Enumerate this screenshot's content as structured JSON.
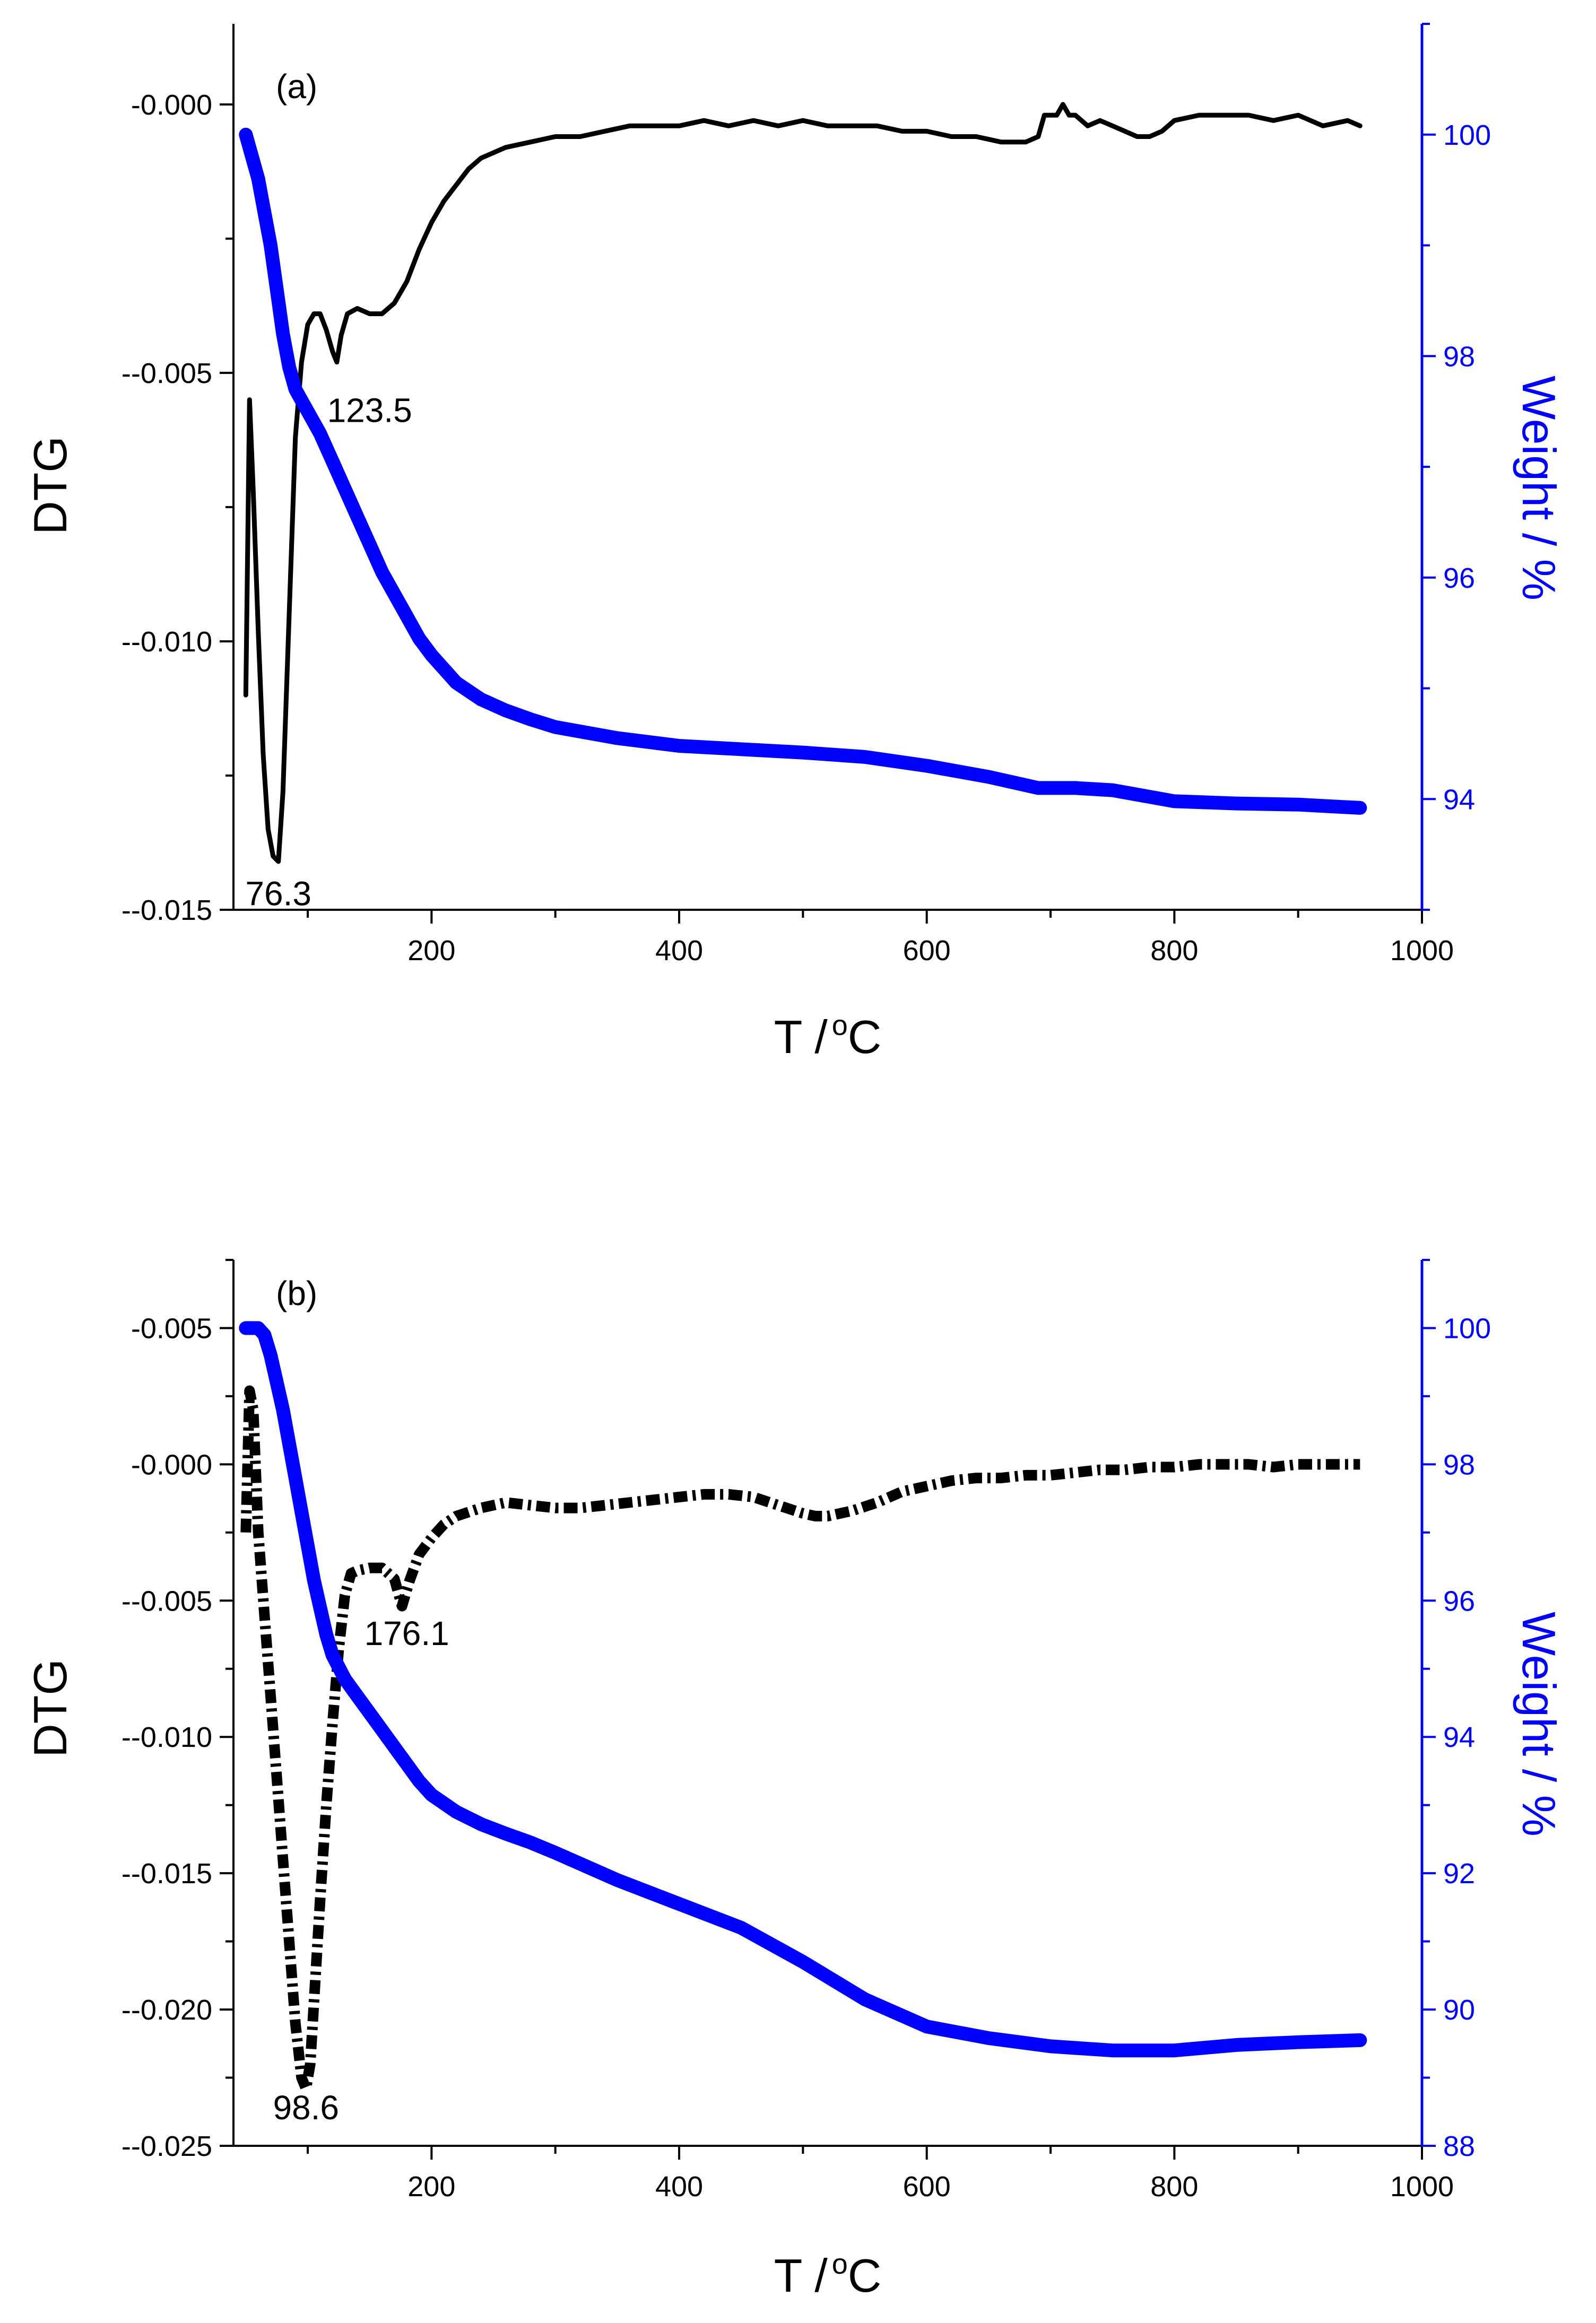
{
  "colors": {
    "dtg_line": "#000000",
    "weight_line": "#0000ff",
    "left_axis": "#000000",
    "right_axis": "#0000ff",
    "background": "#ffffff"
  },
  "chart_data": [
    {
      "type": "line",
      "panel_label": "(a)",
      "xlabel_main": "T /",
      "xlabel_sup": "o",
      "xlabel_unit": "C",
      "ylabel_left": "DTG",
      "ylabel_right": "Weight / %",
      "xlim": [
        40,
        1000
      ],
      "ylim_left": [
        -0.015,
        0.0015
      ],
      "ylim_right": [
        93,
        101
      ],
      "x_ticks": [
        200,
        400,
        600,
        800,
        1000
      ],
      "x_tick_labels": [
        "200",
        "400",
        "600",
        "800",
        "1000"
      ],
      "y_left_ticks": [
        -0.015,
        -0.01,
        -0.005,
        0.0
      ],
      "y_left_tick_labels": [
        "--0.015",
        "--0.010",
        "--0.005",
        "-0.000"
      ],
      "y_right_ticks": [
        94,
        96,
        98,
        100
      ],
      "y_right_tick_labels": [
        "94",
        "96",
        "98",
        "100"
      ],
      "annotations": [
        {
          "text": "76.3",
          "x": 76.3,
          "y": -0.0147
        },
        {
          "text": "123.5",
          "x": 150,
          "y": -0.0057
        }
      ],
      "series": [
        {
          "name": "DTG",
          "axis": "left",
          "style": "solid",
          "x": [
            50,
            53,
            56,
            60,
            64,
            68,
            72,
            76.3,
            80,
            85,
            90,
            95,
            100,
            105,
            110,
            115,
            120,
            123.5,
            127,
            132,
            140,
            150,
            160,
            170,
            180,
            190,
            200,
            210,
            220,
            230,
            240,
            250,
            260,
            280,
            300,
            320,
            340,
            360,
            380,
            400,
            420,
            440,
            460,
            480,
            500,
            520,
            540,
            560,
            580,
            600,
            620,
            640,
            660,
            680,
            690,
            695,
            700,
            705,
            710,
            715,
            720,
            730,
            740,
            750,
            760,
            770,
            780,
            790,
            800,
            820,
            840,
            860,
            880,
            900,
            920,
            940,
            950
          ],
          "y": [
            -0.011,
            -0.0055,
            -0.0072,
            -0.0098,
            -0.0121,
            -0.0135,
            -0.014,
            -0.0141,
            -0.0128,
            -0.0095,
            -0.0062,
            -0.0048,
            -0.0041,
            -0.0039,
            -0.0039,
            -0.0042,
            -0.0046,
            -0.0048,
            -0.0043,
            -0.0039,
            -0.0038,
            -0.0039,
            -0.0039,
            -0.0037,
            -0.0033,
            -0.0027,
            -0.0022,
            -0.0018,
            -0.0015,
            -0.0012,
            -0.001,
            -0.0009,
            -0.0008,
            -0.0007,
            -0.0006,
            -0.0006,
            -0.0005,
            -0.0004,
            -0.0004,
            -0.0004,
            -0.0003,
            -0.0004,
            -0.0003,
            -0.0004,
            -0.0003,
            -0.0004,
            -0.0004,
            -0.0004,
            -0.0005,
            -0.0005,
            -0.0006,
            -0.0006,
            -0.0007,
            -0.0007,
            -0.0006,
            -0.0002,
            -0.0002,
            -0.0002,
            0.0,
            -0.0002,
            -0.0002,
            -0.0004,
            -0.0003,
            -0.0004,
            -0.0005,
            -0.0006,
            -0.0006,
            -0.0005,
            -0.0003,
            -0.0002,
            -0.0002,
            -0.0002,
            -0.0003,
            -0.0002,
            -0.0004,
            -0.0003,
            -0.0004
          ]
        },
        {
          "name": "Weight",
          "axis": "right",
          "style": "thick",
          "x": [
            50,
            55,
            60,
            65,
            70,
            75,
            80,
            85,
            90,
            95,
            100,
            110,
            120,
            130,
            140,
            150,
            160,
            170,
            180,
            190,
            200,
            220,
            240,
            260,
            280,
            300,
            350,
            400,
            450,
            500,
            550,
            600,
            650,
            690,
            720,
            750,
            800,
            850,
            900,
            950
          ],
          "y": [
            100.0,
            99.8,
            99.6,
            99.3,
            99.0,
            98.6,
            98.2,
            97.9,
            97.7,
            97.6,
            97.5,
            97.3,
            97.05,
            96.8,
            96.55,
            96.3,
            96.05,
            95.85,
            95.65,
            95.45,
            95.3,
            95.05,
            94.9,
            94.8,
            94.72,
            94.65,
            94.55,
            94.48,
            94.45,
            94.42,
            94.38,
            94.3,
            94.2,
            94.1,
            94.1,
            94.08,
            93.98,
            93.96,
            93.95,
            93.92
          ]
        }
      ]
    },
    {
      "type": "line",
      "panel_label": "(b)",
      "xlabel_main": "T /",
      "xlabel_sup": "o",
      "xlabel_unit": "C",
      "ylabel_left": "DTG",
      "ylabel_right": "Weight / %",
      "xlim": [
        40,
        1000
      ],
      "ylim_left": [
        -0.025,
        0.0075
      ],
      "ylim_right": [
        88,
        101
      ],
      "x_ticks": [
        200,
        400,
        600,
        800,
        1000
      ],
      "x_tick_labels": [
        "200",
        "400",
        "600",
        "800",
        "1000"
      ],
      "y_left_ticks": [
        -0.025,
        -0.02,
        -0.015,
        -0.01,
        -0.005,
        0.0,
        0.005
      ],
      "y_left_tick_labels": [
        "--0.025",
        "--0.020",
        "--0.015",
        "--0.010",
        "--0.005",
        "-0.000",
        "-0.005"
      ],
      "y_right_ticks": [
        88,
        90,
        92,
        94,
        96,
        98,
        100
      ],
      "y_right_tick_labels": [
        "88",
        "90",
        "92",
        "94",
        "96",
        "98",
        "100"
      ],
      "annotations": [
        {
          "text": "98.6",
          "x": 98.6,
          "y": -0.0236
        },
        {
          "text": "176.1",
          "x": 180,
          "y": -0.0062
        }
      ],
      "series": [
        {
          "name": "DTG",
          "axis": "left",
          "style": "dashdot",
          "x": [
            50,
            53,
            56,
            60,
            65,
            70,
            75,
            80,
            85,
            90,
            95,
            98.6,
            102,
            106,
            110,
            115,
            120,
            125,
            130,
            135,
            140,
            150,
            160,
            170,
            176.1,
            182,
            190,
            200,
            210,
            220,
            240,
            260,
            280,
            300,
            320,
            340,
            360,
            380,
            400,
            420,
            440,
            460,
            480,
            500,
            510,
            520,
            540,
            560,
            580,
            600,
            620,
            640,
            660,
            680,
            700,
            720,
            740,
            760,
            780,
            800,
            820,
            840,
            860,
            880,
            900,
            920,
            950
          ],
          "y": [
            -0.0025,
            0.0027,
            0.002,
            -0.0025,
            -0.0055,
            -0.0085,
            -0.0115,
            -0.0145,
            -0.0175,
            -0.0205,
            -0.0225,
            -0.0229,
            -0.022,
            -0.019,
            -0.016,
            -0.0125,
            -0.0095,
            -0.0068,
            -0.0048,
            -0.004,
            -0.0039,
            -0.0038,
            -0.0038,
            -0.0042,
            -0.0052,
            -0.0043,
            -0.0033,
            -0.0027,
            -0.0022,
            -0.0019,
            -0.0016,
            -0.0014,
            -0.0015,
            -0.0016,
            -0.0016,
            -0.0015,
            -0.0014,
            -0.0013,
            -0.0012,
            -0.0011,
            -0.0011,
            -0.0012,
            -0.0015,
            -0.0018,
            -0.0019,
            -0.0019,
            -0.0017,
            -0.0014,
            -0.001,
            -0.0008,
            -0.0006,
            -0.0005,
            -0.0005,
            -0.0004,
            -0.0004,
            -0.0003,
            -0.0002,
            -0.0002,
            -0.0001,
            -0.0001,
            0.0,
            0.0,
            0.0,
            -0.0001,
            0.0,
            0.0,
            0.0
          ]
        },
        {
          "name": "Weight",
          "axis": "right",
          "style": "thick",
          "x": [
            50,
            55,
            60,
            65,
            70,
            75,
            80,
            85,
            90,
            95,
            100,
            105,
            110,
            115,
            120,
            130,
            140,
            150,
            160,
            170,
            180,
            190,
            200,
            220,
            240,
            260,
            280,
            300,
            350,
            400,
            450,
            500,
            550,
            600,
            650,
            700,
            750,
            800,
            850,
            900,
            950
          ],
          "y": [
            100.0,
            100.0,
            100.0,
            99.9,
            99.6,
            99.2,
            98.8,
            98.3,
            97.8,
            97.3,
            96.8,
            96.3,
            95.9,
            95.5,
            95.2,
            94.85,
            94.6,
            94.35,
            94.1,
            93.85,
            93.6,
            93.35,
            93.15,
            92.9,
            92.72,
            92.58,
            92.45,
            92.3,
            91.9,
            91.55,
            91.2,
            90.7,
            90.15,
            89.75,
            89.58,
            89.46,
            89.4,
            89.4,
            89.48,
            89.52,
            89.55
          ]
        }
      ]
    }
  ]
}
